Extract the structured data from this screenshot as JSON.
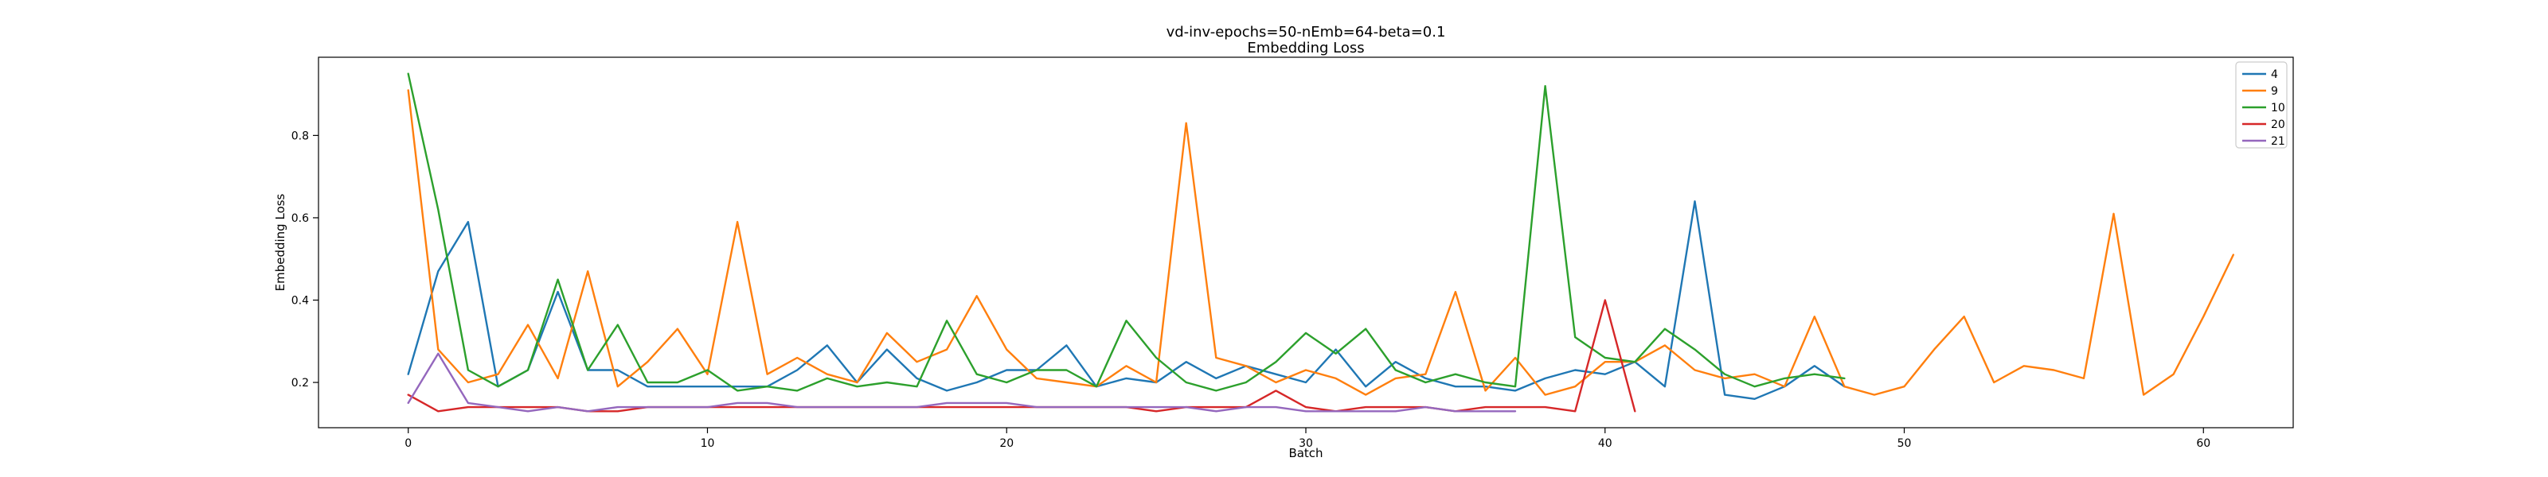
{
  "chart_data": {
    "type": "line",
    "title": "vd-inv-epochs=50-nEmb=64-beta=0.1",
    "subtitle": "Embedding Loss",
    "xlabel": "Batch",
    "ylabel": "Embedding Loss",
    "xlim": [
      -3,
      63
    ],
    "ylim": [
      0.09,
      0.99
    ],
    "xticks": [
      0,
      10,
      20,
      30,
      40,
      50,
      60
    ],
    "yticks": [
      0.2,
      0.4,
      0.6,
      0.8
    ],
    "xtick_labels": [
      "0",
      "10",
      "20",
      "30",
      "40",
      "50",
      "60"
    ],
    "ytick_labels": [
      "0.2",
      "0.4",
      "0.6",
      "0.8"
    ],
    "grid": false,
    "legend_position": "top-right",
    "series": [
      {
        "name": "4",
        "color": "#1f77b4",
        "values": [
          0.22,
          0.47,
          0.59,
          0.19,
          0.23,
          0.42,
          0.23,
          0.23,
          0.19,
          0.19,
          0.19,
          0.19,
          0.19,
          0.23,
          0.29,
          0.2,
          0.28,
          0.21,
          0.18,
          0.2,
          0.23,
          0.23,
          0.29,
          0.19,
          0.21,
          0.2,
          0.25,
          0.21,
          0.24,
          0.22,
          0.2,
          0.28,
          0.19,
          0.25,
          0.21,
          0.19,
          0.19,
          0.18,
          0.21,
          0.23,
          0.22,
          0.25,
          0.19,
          0.64,
          0.17,
          0.16,
          0.19,
          0.24,
          0.19
        ]
      },
      {
        "name": "9",
        "color": "#ff7f0e",
        "values": [
          0.91,
          0.28,
          0.2,
          0.22,
          0.34,
          0.21,
          0.47,
          0.19,
          0.25,
          0.33,
          0.22,
          0.59,
          0.22,
          0.26,
          0.22,
          0.2,
          0.32,
          0.25,
          0.28,
          0.41,
          0.28,
          0.21,
          0.2,
          0.19,
          0.24,
          0.2,
          0.83,
          0.26,
          0.24,
          0.2,
          0.23,
          0.21,
          0.17,
          0.21,
          0.22,
          0.42,
          0.18,
          0.26,
          0.17,
          0.19,
          0.25,
          0.25,
          0.29,
          0.23,
          0.21,
          0.22,
          0.19,
          0.36,
          0.19,
          0.17,
          0.19,
          0.28,
          0.36,
          0.2,
          0.24,
          0.23,
          0.21,
          0.61,
          0.17,
          0.22,
          0.36,
          0.51
        ]
      },
      {
        "name": "10",
        "color": "#2ca02c",
        "values": [
          0.95,
          0.62,
          0.23,
          0.19,
          0.23,
          0.45,
          0.23,
          0.34,
          0.2,
          0.2,
          0.23,
          0.18,
          0.19,
          0.18,
          0.21,
          0.19,
          0.2,
          0.19,
          0.35,
          0.22,
          0.2,
          0.23,
          0.23,
          0.19,
          0.35,
          0.26,
          0.2,
          0.18,
          0.2,
          0.25,
          0.32,
          0.27,
          0.33,
          0.23,
          0.2,
          0.22,
          0.2,
          0.19,
          0.92,
          0.31,
          0.26,
          0.25,
          0.33,
          0.28,
          0.22,
          0.19,
          0.21,
          0.22,
          0.21
        ]
      },
      {
        "name": "20",
        "color": "#d62728",
        "values": [
          0.17,
          0.13,
          0.14,
          0.14,
          0.14,
          0.14,
          0.13,
          0.13,
          0.14,
          0.14,
          0.14,
          0.14,
          0.14,
          0.14,
          0.14,
          0.14,
          0.14,
          0.14,
          0.14,
          0.14,
          0.14,
          0.14,
          0.14,
          0.14,
          0.14,
          0.13,
          0.14,
          0.14,
          0.14,
          0.18,
          0.14,
          0.13,
          0.14,
          0.14,
          0.14,
          0.13,
          0.14,
          0.14,
          0.14,
          0.13,
          0.4,
          0.13
        ]
      },
      {
        "name": "21",
        "color": "#9467bd",
        "values": [
          0.15,
          0.27,
          0.15,
          0.14,
          0.13,
          0.14,
          0.13,
          0.14,
          0.14,
          0.14,
          0.14,
          0.15,
          0.15,
          0.14,
          0.14,
          0.14,
          0.14,
          0.14,
          0.15,
          0.15,
          0.15,
          0.14,
          0.14,
          0.14,
          0.14,
          0.14,
          0.14,
          0.13,
          0.14,
          0.14,
          0.13,
          0.13,
          0.13,
          0.13,
          0.14,
          0.13,
          0.13,
          0.13
        ]
      }
    ]
  }
}
